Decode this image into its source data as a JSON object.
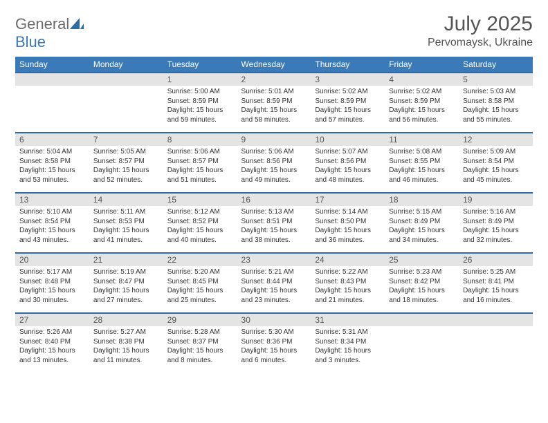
{
  "logo": {
    "text_general": "General",
    "text_blue": "Blue"
  },
  "title": "July 2025",
  "location": "Pervomaysk, Ukraine",
  "colors": {
    "header_bg": "#3a7ab8",
    "header_text": "#ffffff",
    "daynum_bg": "#e4e4e4",
    "border_top": "#2f6aa3",
    "body_text": "#333333",
    "title_text": "#555555"
  },
  "daysOfWeek": [
    "Sunday",
    "Monday",
    "Tuesday",
    "Wednesday",
    "Thursday",
    "Friday",
    "Saturday"
  ],
  "weeks": [
    {
      "nums": [
        "",
        "",
        "1",
        "2",
        "3",
        "4",
        "5"
      ],
      "cells": [
        null,
        null,
        {
          "sunrise": "Sunrise: 5:00 AM",
          "sunset": "Sunset: 8:59 PM",
          "day1": "Daylight: 15 hours",
          "day2": "and 59 minutes."
        },
        {
          "sunrise": "Sunrise: 5:01 AM",
          "sunset": "Sunset: 8:59 PM",
          "day1": "Daylight: 15 hours",
          "day2": "and 58 minutes."
        },
        {
          "sunrise": "Sunrise: 5:02 AM",
          "sunset": "Sunset: 8:59 PM",
          "day1": "Daylight: 15 hours",
          "day2": "and 57 minutes."
        },
        {
          "sunrise": "Sunrise: 5:02 AM",
          "sunset": "Sunset: 8:59 PM",
          "day1": "Daylight: 15 hours",
          "day2": "and 56 minutes."
        },
        {
          "sunrise": "Sunrise: 5:03 AM",
          "sunset": "Sunset: 8:58 PM",
          "day1": "Daylight: 15 hours",
          "day2": "and 55 minutes."
        }
      ]
    },
    {
      "nums": [
        "6",
        "7",
        "8",
        "9",
        "10",
        "11",
        "12"
      ],
      "cells": [
        {
          "sunrise": "Sunrise: 5:04 AM",
          "sunset": "Sunset: 8:58 PM",
          "day1": "Daylight: 15 hours",
          "day2": "and 53 minutes."
        },
        {
          "sunrise": "Sunrise: 5:05 AM",
          "sunset": "Sunset: 8:57 PM",
          "day1": "Daylight: 15 hours",
          "day2": "and 52 minutes."
        },
        {
          "sunrise": "Sunrise: 5:06 AM",
          "sunset": "Sunset: 8:57 PM",
          "day1": "Daylight: 15 hours",
          "day2": "and 51 minutes."
        },
        {
          "sunrise": "Sunrise: 5:06 AM",
          "sunset": "Sunset: 8:56 PM",
          "day1": "Daylight: 15 hours",
          "day2": "and 49 minutes."
        },
        {
          "sunrise": "Sunrise: 5:07 AM",
          "sunset": "Sunset: 8:56 PM",
          "day1": "Daylight: 15 hours",
          "day2": "and 48 minutes."
        },
        {
          "sunrise": "Sunrise: 5:08 AM",
          "sunset": "Sunset: 8:55 PM",
          "day1": "Daylight: 15 hours",
          "day2": "and 46 minutes."
        },
        {
          "sunrise": "Sunrise: 5:09 AM",
          "sunset": "Sunset: 8:54 PM",
          "day1": "Daylight: 15 hours",
          "day2": "and 45 minutes."
        }
      ]
    },
    {
      "nums": [
        "13",
        "14",
        "15",
        "16",
        "17",
        "18",
        "19"
      ],
      "cells": [
        {
          "sunrise": "Sunrise: 5:10 AM",
          "sunset": "Sunset: 8:54 PM",
          "day1": "Daylight: 15 hours",
          "day2": "and 43 minutes."
        },
        {
          "sunrise": "Sunrise: 5:11 AM",
          "sunset": "Sunset: 8:53 PM",
          "day1": "Daylight: 15 hours",
          "day2": "and 41 minutes."
        },
        {
          "sunrise": "Sunrise: 5:12 AM",
          "sunset": "Sunset: 8:52 PM",
          "day1": "Daylight: 15 hours",
          "day2": "and 40 minutes."
        },
        {
          "sunrise": "Sunrise: 5:13 AM",
          "sunset": "Sunset: 8:51 PM",
          "day1": "Daylight: 15 hours",
          "day2": "and 38 minutes."
        },
        {
          "sunrise": "Sunrise: 5:14 AM",
          "sunset": "Sunset: 8:50 PM",
          "day1": "Daylight: 15 hours",
          "day2": "and 36 minutes."
        },
        {
          "sunrise": "Sunrise: 5:15 AM",
          "sunset": "Sunset: 8:49 PM",
          "day1": "Daylight: 15 hours",
          "day2": "and 34 minutes."
        },
        {
          "sunrise": "Sunrise: 5:16 AM",
          "sunset": "Sunset: 8:49 PM",
          "day1": "Daylight: 15 hours",
          "day2": "and 32 minutes."
        }
      ]
    },
    {
      "nums": [
        "20",
        "21",
        "22",
        "23",
        "24",
        "25",
        "26"
      ],
      "cells": [
        {
          "sunrise": "Sunrise: 5:17 AM",
          "sunset": "Sunset: 8:48 PM",
          "day1": "Daylight: 15 hours",
          "day2": "and 30 minutes."
        },
        {
          "sunrise": "Sunrise: 5:19 AM",
          "sunset": "Sunset: 8:47 PM",
          "day1": "Daylight: 15 hours",
          "day2": "and 27 minutes."
        },
        {
          "sunrise": "Sunrise: 5:20 AM",
          "sunset": "Sunset: 8:45 PM",
          "day1": "Daylight: 15 hours",
          "day2": "and 25 minutes."
        },
        {
          "sunrise": "Sunrise: 5:21 AM",
          "sunset": "Sunset: 8:44 PM",
          "day1": "Daylight: 15 hours",
          "day2": "and 23 minutes."
        },
        {
          "sunrise": "Sunrise: 5:22 AM",
          "sunset": "Sunset: 8:43 PM",
          "day1": "Daylight: 15 hours",
          "day2": "and 21 minutes."
        },
        {
          "sunrise": "Sunrise: 5:23 AM",
          "sunset": "Sunset: 8:42 PM",
          "day1": "Daylight: 15 hours",
          "day2": "and 18 minutes."
        },
        {
          "sunrise": "Sunrise: 5:25 AM",
          "sunset": "Sunset: 8:41 PM",
          "day1": "Daylight: 15 hours",
          "day2": "and 16 minutes."
        }
      ]
    },
    {
      "nums": [
        "27",
        "28",
        "29",
        "30",
        "31",
        "",
        ""
      ],
      "cells": [
        {
          "sunrise": "Sunrise: 5:26 AM",
          "sunset": "Sunset: 8:40 PM",
          "day1": "Daylight: 15 hours",
          "day2": "and 13 minutes."
        },
        {
          "sunrise": "Sunrise: 5:27 AM",
          "sunset": "Sunset: 8:38 PM",
          "day1": "Daylight: 15 hours",
          "day2": "and 11 minutes."
        },
        {
          "sunrise": "Sunrise: 5:28 AM",
          "sunset": "Sunset: 8:37 PM",
          "day1": "Daylight: 15 hours",
          "day2": "and 8 minutes."
        },
        {
          "sunrise": "Sunrise: 5:30 AM",
          "sunset": "Sunset: 8:36 PM",
          "day1": "Daylight: 15 hours",
          "day2": "and 6 minutes."
        },
        {
          "sunrise": "Sunrise: 5:31 AM",
          "sunset": "Sunset: 8:34 PM",
          "day1": "Daylight: 15 hours",
          "day2": "and 3 minutes."
        },
        null,
        null
      ]
    }
  ]
}
